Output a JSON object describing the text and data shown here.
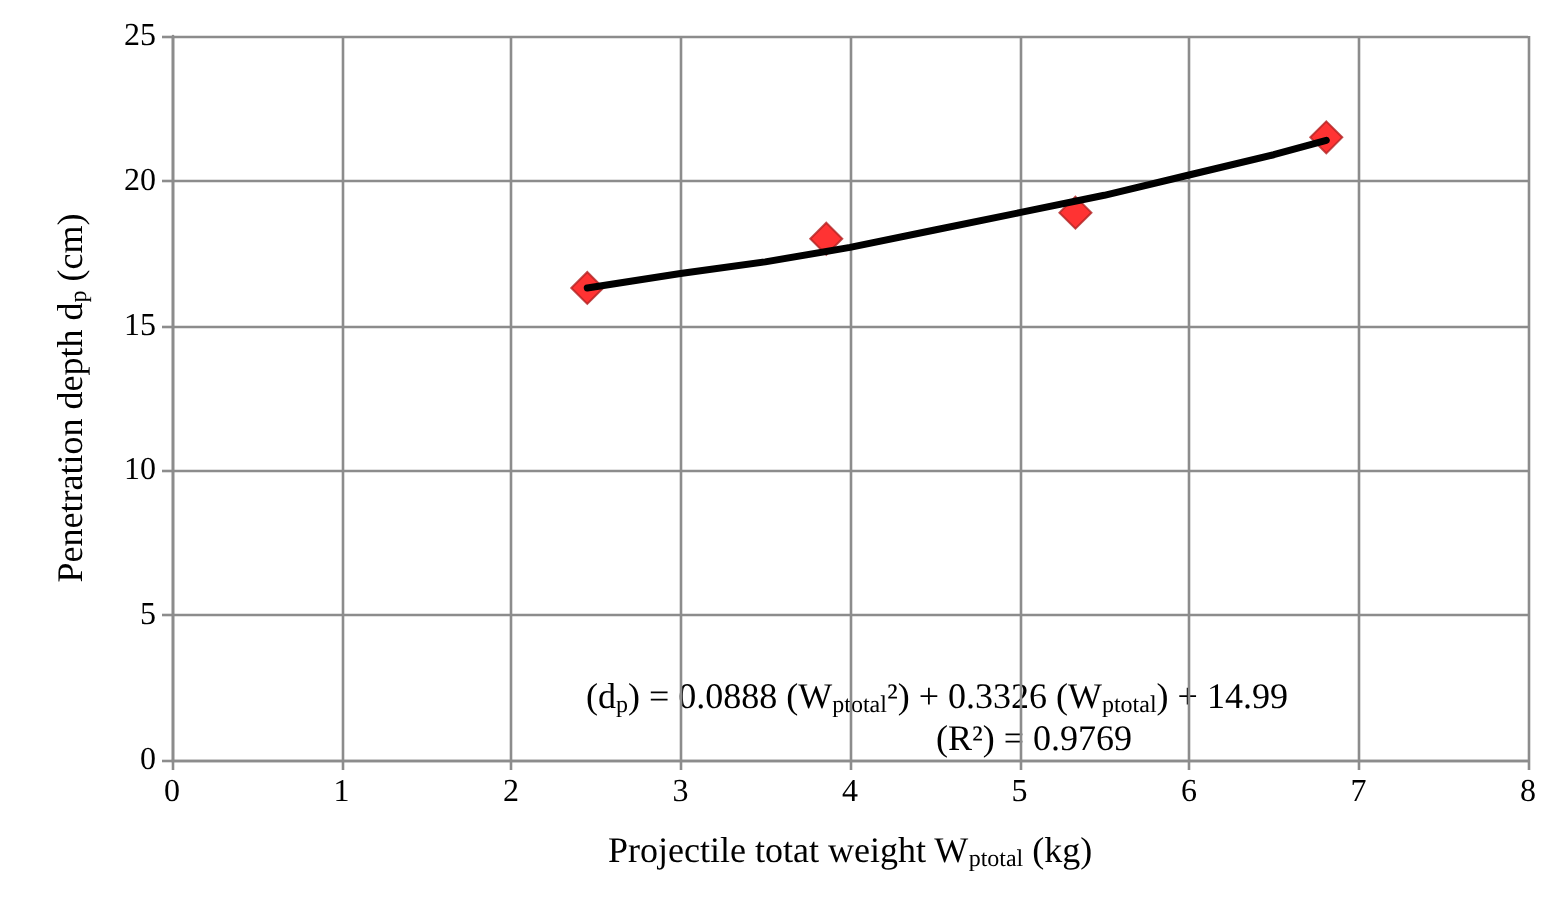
{
  "chart_data": {
    "type": "scatter",
    "xlabel": "Projectile totat weight W$_{ptotal}$ (kg)",
    "ylabel": "Penetration depth d$_{p}$ (cm)",
    "x": [
      2.45,
      3.86,
      5.33,
      6.81
    ],
    "series": [
      {
        "color": "#ff0000",
        "marker": "diamond",
        "values": [
          16.3,
          18.0,
          18.9,
          21.5
        ]
      },
      {
        "type": "line",
        "color": "#000000",
        "marker": "none",
        "line_style": "solid",
        "x": [
          2.45,
          3,
          3.5,
          4,
          4.5,
          5,
          5.5,
          6,
          6.5,
          6.81
        ],
        "values": [
          16.3,
          16.8,
          17.2,
          17.7,
          18.3,
          18.9,
          19.5,
          20.2,
          20.9,
          21.4
        ]
      }
    ],
    "xlim": [
      0,
      8
    ],
    "xticks": [
      0,
      1,
      2,
      3,
      4,
      5,
      6,
      7,
      8
    ],
    "ylim": [
      0,
      25
    ],
    "yticks": [
      0,
      5,
      10,
      15,
      20,
      25
    ],
    "grid": true,
    "annotations": [
      "(d$_{p}$) = 0.0888 (W$_{ptotal}$²) + 0.3326 (W$_{ptotal}$) + 14.99",
      "(R²) = 0.9769"
    ]
  }
}
